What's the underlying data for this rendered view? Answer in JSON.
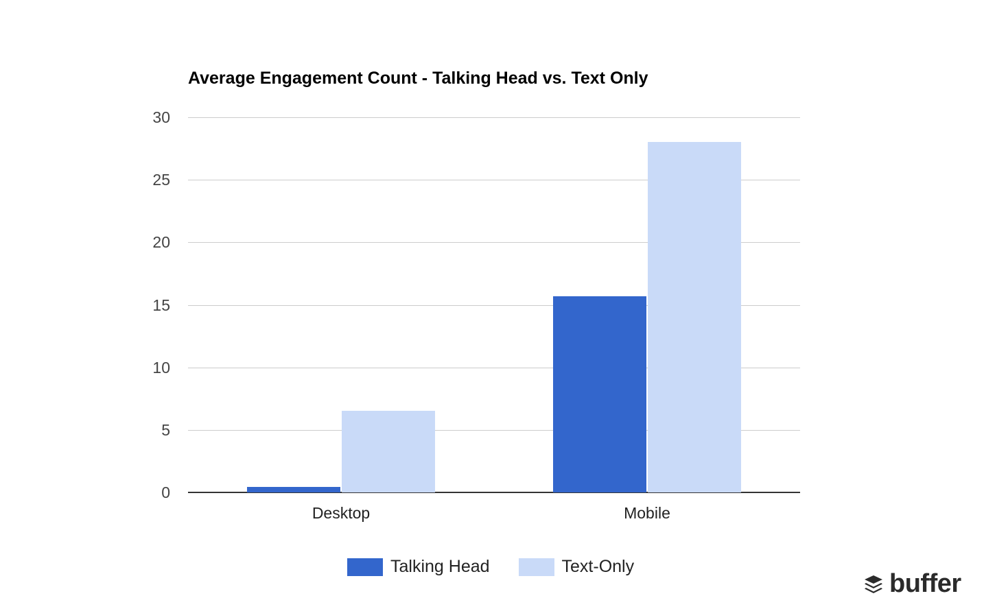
{
  "chart_data": {
    "type": "bar",
    "title": "Average Engagement Count - Talking Head vs. Text Only",
    "categories": [
      "Desktop",
      "Mobile"
    ],
    "series": [
      {
        "name": "Talking Head",
        "color": "#3366cc",
        "values": [
          0.45,
          15.7
        ]
      },
      {
        "name": "Text-Only",
        "color": "#c9daf8",
        "values": [
          6.5,
          28
        ]
      }
    ],
    "xlabel": "",
    "ylabel": "",
    "ylim": [
      0,
      30
    ],
    "yticks": [
      0,
      5,
      10,
      15,
      20,
      25,
      30
    ],
    "grid": true,
    "legend_position": "bottom"
  },
  "branding": {
    "logo_text": "buffer",
    "logo_icon": "layers-stack-icon"
  }
}
